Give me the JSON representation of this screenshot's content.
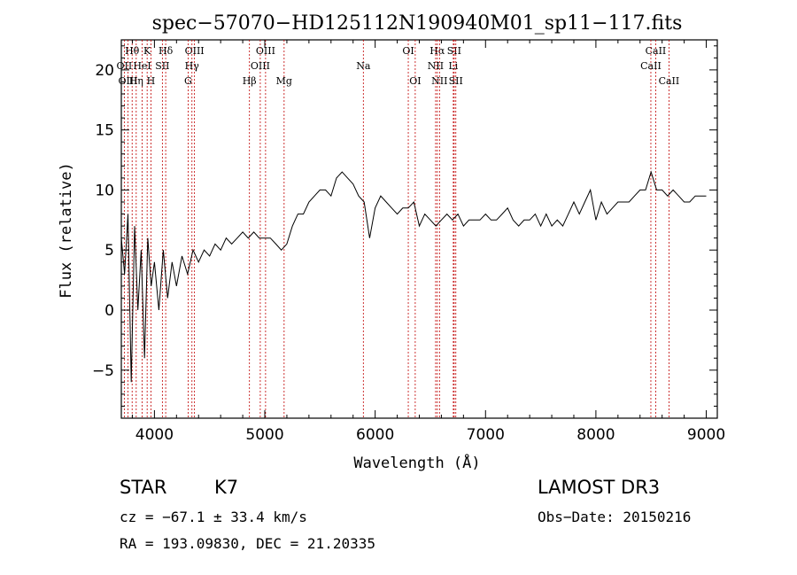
{
  "chart_data": {
    "type": "line",
    "title": "spec−57070−HD125112N190940M01_sp11−117.fits",
    "xlabel": "Wavelength (Å)",
    "ylabel": "Flux (relative)",
    "xlim": [
      3700,
      9100
    ],
    "ylim": [
      -9,
      22.5
    ],
    "xticks": [
      4000,
      5000,
      6000,
      7000,
      8000,
      9000
    ],
    "yticks": [
      -5,
      0,
      5,
      10,
      15,
      20
    ],
    "grid": false,
    "legend": "none",
    "series": [
      {
        "line_color": "#000000",
        "x": [
          3700,
          3730,
          3760,
          3790,
          3820,
          3850,
          3880,
          3910,
          3940,
          3970,
          4000,
          4040,
          4080,
          4120,
          4160,
          4200,
          4250,
          4300,
          4350,
          4400,
          4450,
          4500,
          4550,
          4600,
          4650,
          4700,
          4750,
          4800,
          4850,
          4900,
          4950,
          5000,
          5050,
          5100,
          5150,
          5200,
          5250,
          5300,
          5350,
          5400,
          5450,
          5500,
          5550,
          5600,
          5650,
          5700,
          5750,
          5800,
          5850,
          5900,
          5950,
          6000,
          6050,
          6100,
          6150,
          6200,
          6250,
          6300,
          6350,
          6400,
          6450,
          6500,
          6550,
          6600,
          6650,
          6700,
          6750,
          6800,
          6850,
          6900,
          6950,
          7000,
          7050,
          7100,
          7150,
          7200,
          7250,
          7300,
          7350,
          7400,
          7450,
          7500,
          7550,
          7600,
          7650,
          7700,
          7750,
          7800,
          7850,
          7900,
          7950,
          8000,
          8050,
          8100,
          8150,
          8200,
          8250,
          8300,
          8350,
          8400,
          8450,
          8500,
          8550,
          8600,
          8650,
          8700,
          8750,
          8800,
          8850,
          8900,
          8950,
          9000
        ],
        "y": [
          6,
          3,
          8,
          -6,
          7,
          0,
          5,
          -4,
          6,
          2,
          4,
          0,
          5,
          1,
          4,
          2,
          4.5,
          3,
          5,
          4,
          5,
          4.5,
          5.5,
          5,
          6,
          5.5,
          6,
          6.5,
          6,
          6.5,
          6,
          6,
          6,
          5.5,
          5,
          5.5,
          7,
          8,
          8,
          9,
          9.5,
          10,
          10,
          9.5,
          11,
          11.5,
          11,
          10.5,
          9.5,
          9,
          6,
          8.5,
          9.5,
          9,
          8.5,
          8,
          8.5,
          8.5,
          9,
          7,
          8,
          7.5,
          7,
          7.5,
          8,
          7.5,
          8,
          7,
          7.5,
          7.5,
          7.5,
          8,
          7.5,
          7.5,
          8,
          8.5,
          7.5,
          7,
          7.5,
          7.5,
          8,
          7,
          8,
          7,
          7.5,
          7,
          8,
          9,
          8,
          9,
          10,
          7.5,
          9,
          8,
          8.5,
          9,
          9,
          9,
          9.5,
          10,
          10,
          11.5,
          10,
          10,
          9.5,
          10,
          9.5,
          9,
          9,
          9.5,
          9.5,
          9.5
        ]
      }
    ],
    "spectral_lines": [
      {
        "name": "Hθ",
        "x": 3798,
        "row": 1
      },
      {
        "name": "OII",
        "x": 3727,
        "row": 2
      },
      {
        "name": "K",
        "x": 3934,
        "row": 1
      },
      {
        "name": "HeI",
        "x": 3889,
        "row": 2
      },
      {
        "name": "OIII",
        "x": 3760,
        "row": 3
      },
      {
        "name": "Hη",
        "x": 3835,
        "row": 3
      },
      {
        "name": "Hδ",
        "x": 4102,
        "row": 1
      },
      {
        "name": "SII",
        "x": 4072,
        "row": 2
      },
      {
        "name": "H",
        "x": 3968,
        "row": 3
      },
      {
        "name": "OIII",
        "x": 4363,
        "row": 1
      },
      {
        "name": "Hγ",
        "x": 4340,
        "row": 2
      },
      {
        "name": "G",
        "x": 4305,
        "row": 3
      },
      {
        "name": "OIII",
        "x": 5007,
        "row": 1
      },
      {
        "name": "OIII",
        "x": 4959,
        "row": 2
      },
      {
        "name": "Hβ",
        "x": 4861,
        "row": 3
      },
      {
        "name": "Mg",
        "x": 5175,
        "row": 3
      },
      {
        "name": "Na",
        "x": 5893,
        "row": 2
      },
      {
        "name": "OI",
        "x": 6300,
        "row": 1
      },
      {
        "name": "OI",
        "x": 6363,
        "row": 3
      },
      {
        "name": "Hα",
        "x": 6563,
        "row": 1
      },
      {
        "name": "NII",
        "x": 6548,
        "row": 2
      },
      {
        "name": "NII",
        "x": 6583,
        "row": 3
      },
      {
        "name": "SII",
        "x": 6716,
        "row": 1
      },
      {
        "name": "Li",
        "x": 6708,
        "row": 2
      },
      {
        "name": "SII",
        "x": 6731,
        "row": 3
      },
      {
        "name": "CaII",
        "x": 8542,
        "row": 1
      },
      {
        "name": "CaII",
        "x": 8498,
        "row": 2
      },
      {
        "name": "CaII",
        "x": 8662,
        "row": 3
      }
    ]
  },
  "info": {
    "object_class": "STAR",
    "subclass": "K7",
    "survey": "LAMOST DR3",
    "cz": "cz = −67.1 ± 33.4 km/s",
    "obs_date": "Obs−Date: 20150216",
    "coords": "RA = 193.09830, DEC =  21.20335"
  }
}
